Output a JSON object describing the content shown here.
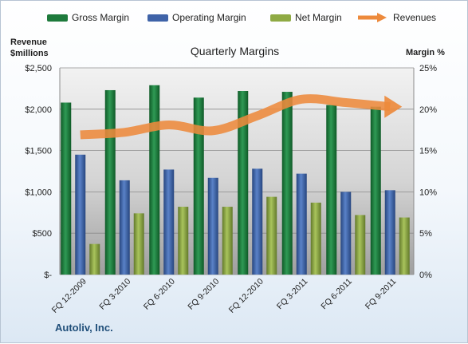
{
  "chart_data": {
    "type": "bar",
    "title": "Quarterly Margins",
    "left_axis_title": [
      "Revenue",
      "$millions"
    ],
    "right_axis_title": "Margin %",
    "categories": [
      "FQ 12-2009",
      "FQ 3-2010",
      "FQ 6-2010",
      "FQ 9-2010",
      "FQ 12-2010",
      "FQ 3-2011",
      "FQ 6-2011",
      "FQ 9-2011"
    ],
    "series": [
      {
        "name": "Gross Margin",
        "axis": "right",
        "color": "#1e7a3c",
        "values": [
          20.8,
          22.3,
          22.9,
          21.4,
          22.2,
          22.1,
          20.5,
          20.3
        ]
      },
      {
        "name": "Operating Margin",
        "axis": "right",
        "color": "#3f63a8",
        "values": [
          14.5,
          11.4,
          12.7,
          11.7,
          12.8,
          12.2,
          10.0,
          10.2
        ]
      },
      {
        "name": "Net Margin",
        "axis": "right",
        "color": "#8faa44",
        "values": [
          3.7,
          7.4,
          8.2,
          8.2,
          9.4,
          8.7,
          7.2,
          6.9
        ]
      },
      {
        "name": "Revenues",
        "axis": "left",
        "type": "line",
        "color": "#ed8a3c",
        "values": [
          1690,
          1720,
          1810,
          1740,
          1920,
          2120,
          2080,
          2030
        ]
      }
    ],
    "left_axis": {
      "ylim": [
        0,
        2500
      ],
      "ticks": [
        0,
        500,
        1000,
        1500,
        2000,
        2500
      ],
      "tick_labels": [
        "$-",
        "$500",
        "$1,000",
        "$1,500",
        "$2,000",
        "$2,500"
      ]
    },
    "right_axis": {
      "ylim": [
        0,
        25
      ],
      "ticks": [
        0,
        5,
        10,
        15,
        20,
        25
      ],
      "tick_labels": [
        "0%",
        "5%",
        "10%",
        "15%",
        "20%",
        "25%"
      ]
    },
    "grid": true,
    "legend_position": "top"
  },
  "footer": {
    "company": "Autoliv, Inc."
  }
}
